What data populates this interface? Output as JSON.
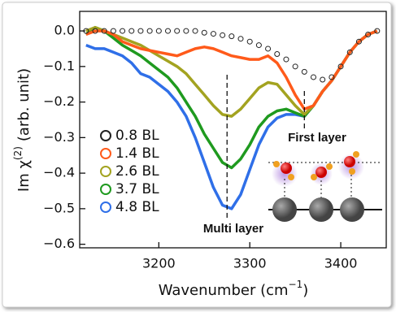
{
  "chart_data": {
    "type": "line",
    "x_label": {
      "text": "Wavenumber (cm",
      "superscript": "−1",
      "suffix": ")"
    },
    "y_label": {
      "text": "Im χ",
      "superscript": "(2)",
      "suffix": "(arb. unit)"
    },
    "x": [
      3120,
      3130,
      3140,
      3150,
      3160,
      3170,
      3180,
      3190,
      3200,
      3210,
      3220,
      3230,
      3240,
      3250,
      3260,
      3270,
      3280,
      3290,
      3300,
      3310,
      3320,
      3330,
      3340,
      3350,
      3360,
      3370,
      3380,
      3390,
      3400,
      3410,
      3420,
      3430,
      3440
    ],
    "series": [
      {
        "name": "0.8 BL",
        "color": "#222222",
        "style": "circles",
        "values": [
          0,
          0,
          0,
          0,
          0,
          0,
          0,
          0,
          0,
          0,
          0,
          0,
          0,
          -0.005,
          -0.008,
          -0.012,
          -0.015,
          -0.022,
          -0.03,
          -0.04,
          -0.05,
          -0.065,
          -0.08,
          -0.1,
          -0.115,
          -0.13,
          -0.137,
          -0.13,
          -0.1,
          -0.06,
          -0.03,
          -0.01,
          0
        ]
      },
      {
        "name": "1.4 BL",
        "color": "#ff5a1a",
        "style": "line",
        "values": [
          -0.01,
          0,
          0,
          -0.01,
          -0.03,
          -0.04,
          -0.05,
          -0.055,
          -0.06,
          -0.065,
          -0.07,
          -0.06,
          -0.05,
          -0.045,
          -0.05,
          -0.06,
          -0.07,
          -0.075,
          -0.08,
          -0.08,
          -0.07,
          -0.09,
          -0.13,
          -0.18,
          -0.22,
          -0.21,
          -0.17,
          -0.14,
          -0.1,
          -0.06,
          -0.03,
          -0.01,
          0
        ]
      },
      {
        "name": "2.6 BL",
        "color": "#a3a320",
        "style": "line",
        "values": [
          0,
          0.01,
          0,
          -0.01,
          -0.02,
          -0.03,
          -0.04,
          -0.055,
          -0.07,
          -0.085,
          -0.1,
          -0.12,
          -0.15,
          -0.18,
          -0.21,
          -0.235,
          -0.24,
          -0.22,
          -0.19,
          -0.16,
          -0.145,
          -0.15,
          -0.18,
          -0.21,
          -0.235,
          -0.21,
          -0.17,
          -0.14,
          -0.1,
          -0.06,
          -0.03,
          -0.01,
          0
        ]
      },
      {
        "name": "3.7 BL",
        "color": "#1f9a1f",
        "style": "line",
        "values": [
          -0.01,
          0.01,
          0,
          -0.02,
          -0.04,
          -0.055,
          -0.07,
          -0.09,
          -0.11,
          -0.13,
          -0.16,
          -0.2,
          -0.24,
          -0.29,
          -0.33,
          -0.37,
          -0.385,
          -0.36,
          -0.32,
          -0.27,
          -0.24,
          -0.225,
          -0.22,
          -0.23,
          -0.24,
          -0.21,
          -0.17,
          -0.14,
          -0.1,
          -0.06,
          -0.03,
          -0.01,
          0
        ]
      },
      {
        "name": "4.8 BL",
        "color": "#2f6fe8",
        "style": "line",
        "values": [
          -0.04,
          -0.05,
          -0.05,
          -0.06,
          -0.07,
          -0.09,
          -0.12,
          -0.13,
          -0.15,
          -0.17,
          -0.2,
          -0.24,
          -0.3,
          -0.37,
          -0.44,
          -0.49,
          -0.5,
          -0.46,
          -0.39,
          -0.32,
          -0.27,
          -0.245,
          -0.235,
          -0.235,
          -0.24,
          -0.21,
          -0.17,
          -0.14,
          -0.1,
          -0.06,
          -0.03,
          -0.01,
          0
        ]
      }
    ],
    "xlim": [
      3113,
      3450
    ],
    "ylim": [
      -0.61,
      0.055
    ],
    "xticks": [
      3200,
      3300,
      3400
    ],
    "yticks": [
      {
        "value": 0,
        "label": "0.0"
      },
      {
        "value": -0.1,
        "label": "−0.1"
      },
      {
        "value": -0.2,
        "label": "−0.2"
      },
      {
        "value": -0.3,
        "label": "−0.3"
      },
      {
        "value": -0.4,
        "label": "−0.4"
      },
      {
        "value": -0.5,
        "label": "−0.5"
      },
      {
        "value": -0.6,
        "label": "−0.6"
      }
    ],
    "legend": "lower left",
    "vlines": [
      3275,
      3360
    ],
    "annotations": [
      "First layer",
      "Multi layer"
    ]
  }
}
